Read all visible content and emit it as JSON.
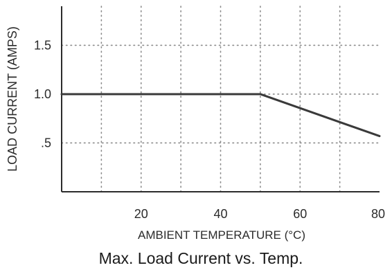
{
  "chart_data": {
    "type": "line",
    "title": "Max. Load Current vs. Temp.",
    "xlabel": "AMBIENT TEMPERATURE (°C)",
    "ylabel": "LOAD CURRENT (AMPS)",
    "xlim": [
      0,
      80
    ],
    "ylim": [
      0,
      1.9
    ],
    "x_ticks": [
      20,
      40,
      60,
      80
    ],
    "x_tick_labels": [
      "20",
      "40",
      "60",
      "80"
    ],
    "y_ticks": [
      0.5,
      1.0,
      1.5
    ],
    "y_tick_labels": [
      ".5",
      "1.0",
      "1.5"
    ],
    "x_grid": [
      10,
      20,
      30,
      40,
      50,
      60,
      70
    ],
    "y_grid": [
      0.5,
      1.0,
      1.5
    ],
    "grid": true,
    "grid_style": "dotted",
    "series": [
      {
        "x": [
          0,
          50,
          80
        ],
        "y": [
          1.0,
          1.0,
          0.57
        ],
        "color": "#3a3a3a"
      }
    ]
  }
}
